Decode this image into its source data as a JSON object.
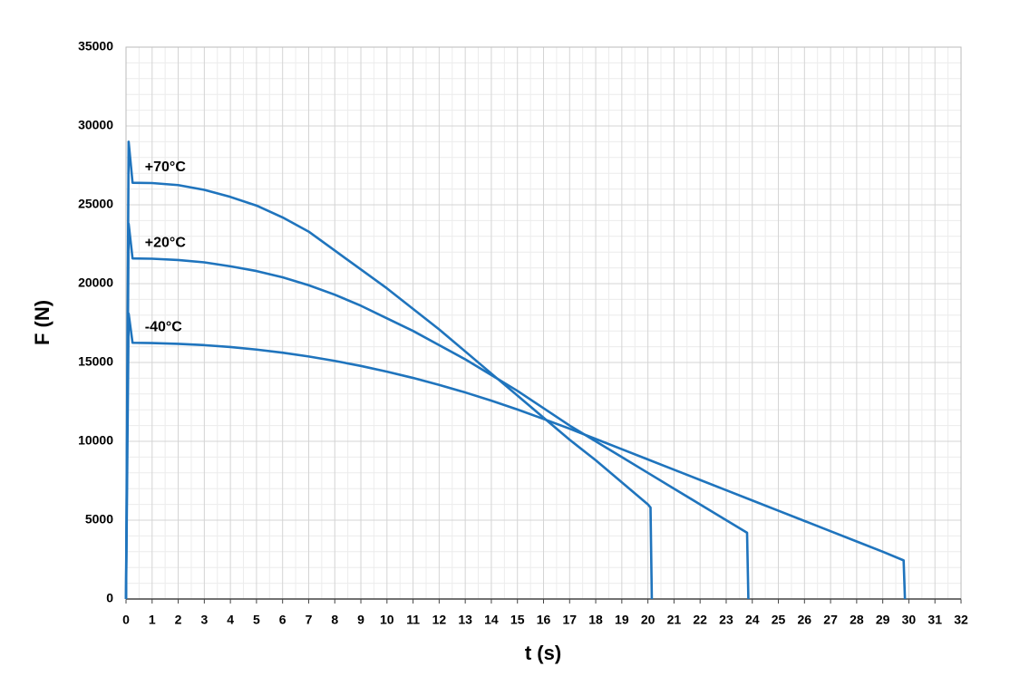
{
  "chart_data": {
    "type": "line",
    "x_label": "t (s)",
    "y_label": "F (N)",
    "xlim": [
      0,
      32
    ],
    "xticks": [
      0,
      1,
      2,
      3,
      4,
      5,
      6,
      7,
      8,
      9,
      10,
      11,
      12,
      13,
      14,
      15,
      16,
      17,
      18,
      19,
      20,
      21,
      22,
      23,
      24,
      25,
      26,
      27,
      28,
      29,
      30,
      31,
      32
    ],
    "ylim": [
      0,
      35000
    ],
    "yticks": [
      0,
      5000,
      10000,
      15000,
      20000,
      25000,
      30000,
      35000
    ],
    "grid": true,
    "minor_grid": true,
    "series": [
      {
        "name": "+70°C",
        "color": "#1f74bd",
        "x": [
          0,
          0.1,
          0.25,
          1,
          2,
          3,
          4,
          5,
          6,
          7,
          8,
          9,
          10,
          11,
          12,
          13,
          14,
          15,
          16,
          17,
          18,
          19,
          20,
          20.1,
          20.15
        ],
        "values": [
          0,
          29000,
          26400,
          26380,
          26250,
          25950,
          25500,
          24950,
          24200,
          23300,
          22100,
          20900,
          19700,
          18400,
          17100,
          15700,
          14300,
          12900,
          11500,
          10100,
          8800,
          7400,
          6000,
          5800,
          0
        ]
      },
      {
        "name": "+20°C",
        "color": "#1f74bd",
        "x": [
          0,
          0.1,
          0.25,
          1,
          2,
          3,
          4,
          5,
          6,
          7,
          8,
          9,
          10,
          11,
          12,
          13,
          14,
          15,
          16,
          17,
          18,
          19,
          20,
          21,
          22,
          23,
          23.8,
          23.85
        ],
        "values": [
          0,
          23800,
          21600,
          21580,
          21500,
          21350,
          21100,
          20800,
          20400,
          19900,
          19300,
          18600,
          17800,
          17000,
          16100,
          15200,
          14200,
          13200,
          12100,
          11000,
          10000,
          9000,
          8000,
          7000,
          6000,
          5000,
          4200,
          0
        ]
      },
      {
        "name": "-40°C",
        "color": "#1f74bd",
        "x": [
          0,
          0.1,
          0.25,
          1,
          2,
          3,
          4,
          5,
          6,
          7,
          8,
          9,
          10,
          11,
          12,
          13,
          14,
          15,
          16,
          17,
          18,
          19,
          20,
          21,
          22,
          23,
          24,
          25,
          26,
          27,
          28,
          29,
          29.8,
          29.85
        ],
        "values": [
          0,
          18100,
          16250,
          16230,
          16180,
          16100,
          15980,
          15820,
          15620,
          15380,
          15100,
          14780,
          14420,
          14020,
          13580,
          13100,
          12580,
          12020,
          11420,
          10800,
          10150,
          9500,
          8850,
          8200,
          7550,
          6900,
          6250,
          5600,
          4950,
          4300,
          3650,
          3000,
          2450,
          0
        ]
      }
    ]
  }
}
